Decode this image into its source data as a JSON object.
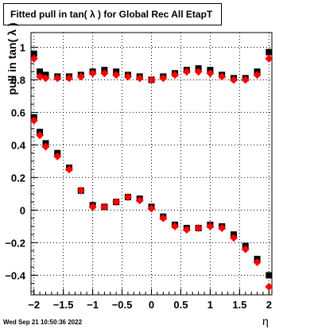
{
  "title": "Fitted pull in tan( λ ) for Global Rec All EtapT",
  "date_stamp": "Wed Sep 21 10:50:36 2022",
  "colors": {
    "series_black": "#000000",
    "series_red": "#ff0000",
    "grid": "#000000"
  },
  "chart_data": {
    "type": "scatter",
    "title": "Fitted pull in tan( λ ) for Global Rec All EtapT",
    "xlabel": "η",
    "ylabel": "pull in tan( λ )",
    "xlim": [
      -2.05,
      2.05
    ],
    "ylim": [
      -0.52,
      1.09
    ],
    "grid": true,
    "x_ticks": [
      -2,
      -1.5,
      -1,
      -0.5,
      0,
      0.5,
      1,
      1.5,
      2
    ],
    "x_tick_labels": [
      "−2",
      "−1.5",
      "−1",
      "−0.5",
      "0",
      "0.5",
      "1",
      "1.5",
      "2"
    ],
    "y_ticks": [
      -0.4,
      -0.2,
      0,
      0.2,
      0.4,
      0.6,
      0.8,
      1
    ],
    "y_tick_labels": [
      "−0.4",
      "−0.2",
      "0",
      "0.2",
      "0.4",
      "0.6",
      "0.8",
      "1"
    ],
    "series": [
      {
        "color": "#000000",
        "sigma": [
          {
            "x": -2.0,
            "y": 0.96
          },
          {
            "x": -1.9,
            "y": 0.85
          },
          {
            "x": -1.8,
            "y": 0.83
          },
          {
            "x": -1.6,
            "y": 0.82
          },
          {
            "x": -1.4,
            "y": 0.82
          },
          {
            "x": -1.2,
            "y": 0.83
          },
          {
            "x": -1.0,
            "y": 0.85
          },
          {
            "x": -0.8,
            "y": 0.86
          },
          {
            "x": -0.6,
            "y": 0.85
          },
          {
            "x": -0.4,
            "y": 0.83
          },
          {
            "x": -0.2,
            "y": 0.82
          },
          {
            "x": 0.0,
            "y": 0.8
          },
          {
            "x": 0.2,
            "y": 0.82
          },
          {
            "x": 0.4,
            "y": 0.84
          },
          {
            "x": 0.6,
            "y": 0.86
          },
          {
            "x": 0.8,
            "y": 0.87
          },
          {
            "x": 1.0,
            "y": 0.86
          },
          {
            "x": 1.2,
            "y": 0.83
          },
          {
            "x": 1.4,
            "y": 0.81
          },
          {
            "x": 1.6,
            "y": 0.81
          },
          {
            "x": 1.8,
            "y": 0.85
          },
          {
            "x": 2.0,
            "y": 0.97
          }
        ],
        "mean": [
          {
            "x": -2.0,
            "y": 0.57
          },
          {
            "x": -1.9,
            "y": 0.48
          },
          {
            "x": -1.8,
            "y": 0.41
          },
          {
            "x": -1.6,
            "y": 0.35
          },
          {
            "x": -1.4,
            "y": 0.26
          },
          {
            "x": -1.2,
            "y": 0.12
          },
          {
            "x": -1.0,
            "y": 0.03
          },
          {
            "x": -0.8,
            "y": 0.02
          },
          {
            "x": -0.6,
            "y": 0.05
          },
          {
            "x": -0.4,
            "y": 0.08
          },
          {
            "x": -0.2,
            "y": 0.07
          },
          {
            "x": 0.0,
            "y": 0.02
          },
          {
            "x": 0.2,
            "y": -0.04
          },
          {
            "x": 0.4,
            "y": -0.09
          },
          {
            "x": 0.6,
            "y": -0.11
          },
          {
            "x": 0.8,
            "y": -0.11
          },
          {
            "x": 1.0,
            "y": -0.09
          },
          {
            "x": 1.2,
            "y": -0.1
          },
          {
            "x": 1.4,
            "y": -0.15
          },
          {
            "x": 1.6,
            "y": -0.22
          },
          {
            "x": 1.8,
            "y": -0.3
          },
          {
            "x": 2.0,
            "y": -0.4
          }
        ]
      },
      {
        "color": "#ff0000",
        "sigma": [
          {
            "x": -2.0,
            "y": 0.93
          },
          {
            "x": -1.9,
            "y": 0.82
          },
          {
            "x": -1.8,
            "y": 0.81
          },
          {
            "x": -1.6,
            "y": 0.81
          },
          {
            "x": -1.4,
            "y": 0.81
          },
          {
            "x": -1.2,
            "y": 0.82
          },
          {
            "x": -1.0,
            "y": 0.84
          },
          {
            "x": -0.8,
            "y": 0.84
          },
          {
            "x": -0.6,
            "y": 0.83
          },
          {
            "x": -0.4,
            "y": 0.82
          },
          {
            "x": -0.2,
            "y": 0.81
          },
          {
            "x": 0.0,
            "y": 0.8
          },
          {
            "x": 0.2,
            "y": 0.81
          },
          {
            "x": 0.4,
            "y": 0.83
          },
          {
            "x": 0.6,
            "y": 0.85
          },
          {
            "x": 0.8,
            "y": 0.85
          },
          {
            "x": 1.0,
            "y": 0.84
          },
          {
            "x": 1.2,
            "y": 0.82
          },
          {
            "x": 1.4,
            "y": 0.8
          },
          {
            "x": 1.6,
            "y": 0.8
          },
          {
            "x": 1.8,
            "y": 0.83
          },
          {
            "x": 2.0,
            "y": 0.93
          }
        ],
        "mean": [
          {
            "x": -2.0,
            "y": 0.55
          },
          {
            "x": -1.9,
            "y": 0.46
          },
          {
            "x": -1.8,
            "y": 0.39
          },
          {
            "x": -1.6,
            "y": 0.33
          },
          {
            "x": -1.4,
            "y": 0.25
          },
          {
            "x": -1.2,
            "y": 0.12
          },
          {
            "x": -1.0,
            "y": 0.02
          },
          {
            "x": -0.8,
            "y": 0.02
          },
          {
            "x": -0.6,
            "y": 0.05
          },
          {
            "x": -0.4,
            "y": 0.08
          },
          {
            "x": -0.2,
            "y": 0.06
          },
          {
            "x": 0.0,
            "y": 0.01
          },
          {
            "x": 0.2,
            "y": -0.05
          },
          {
            "x": 0.4,
            "y": -0.1
          },
          {
            "x": 0.6,
            "y": -0.12
          },
          {
            "x": 0.8,
            "y": -0.11
          },
          {
            "x": 1.0,
            "y": -0.1
          },
          {
            "x": 1.2,
            "y": -0.11
          },
          {
            "x": 1.4,
            "y": -0.17
          },
          {
            "x": 1.6,
            "y": -0.24
          },
          {
            "x": 1.8,
            "y": -0.32
          },
          {
            "x": 2.0,
            "y": -0.47
          }
        ]
      }
    ]
  }
}
